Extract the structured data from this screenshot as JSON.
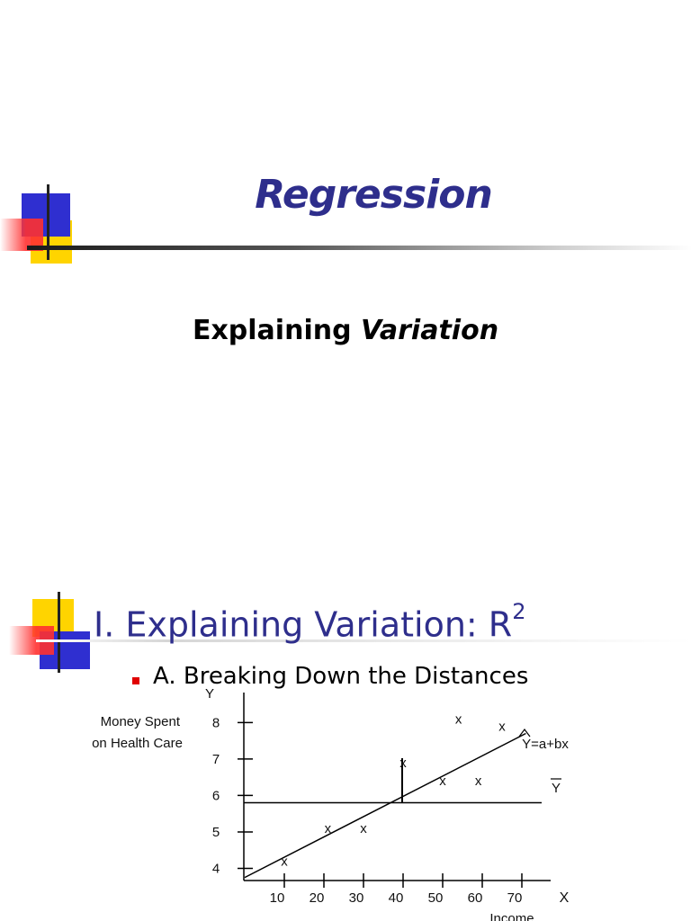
{
  "slide1": {
    "title": "Regression",
    "subtitle_plain": "Explaining ",
    "subtitle_em": "Variation"
  },
  "slide2": {
    "title": "I. Explaining Variation: R",
    "title_sup": "2",
    "bullet": "A.  Breaking Down the Distances"
  },
  "colors": {
    "title_blue": "#2e2e8c",
    "square_blue": "#2f2fd0",
    "square_yellow": "#ffd400",
    "square_red": "#ff3030",
    "bullet_red": "#e00000"
  },
  "chart_data": {
    "type": "scatter",
    "y_axis_symbol": "Y",
    "x_axis_symbol": "X",
    "ylabel_lines": [
      "Money Spent",
      "on Health Care"
    ],
    "xlabel": "Income",
    "x_ticks": [
      "10",
      "20",
      "30",
      "40",
      "50",
      "60",
      "70"
    ],
    "y_ticks": [
      "8",
      "7",
      "6",
      "5",
      "4"
    ],
    "points_marker": "x",
    "points": [
      {
        "x": 10,
        "y": 4.2
      },
      {
        "x": 21,
        "y": 5.1
      },
      {
        "x": 30,
        "y": 5.1
      },
      {
        "x": 40,
        "y": 6.9
      },
      {
        "x": 50,
        "y": 6.4
      },
      {
        "x": 54,
        "y": 8.1
      },
      {
        "x": 59,
        "y": 6.4
      },
      {
        "x": 65,
        "y": 7.9
      }
    ],
    "regression_line": {
      "label": "Y=a+bx",
      "x_start": 0,
      "y_start": 3.75,
      "x_end": 71,
      "y_end": 7.7
    },
    "mean_line": {
      "label": "Y",
      "y": 5.8
    },
    "deviation_at_x": 40,
    "xlim": [
      0,
      78
    ],
    "ylim": [
      2.4,
      9.0
    ]
  }
}
